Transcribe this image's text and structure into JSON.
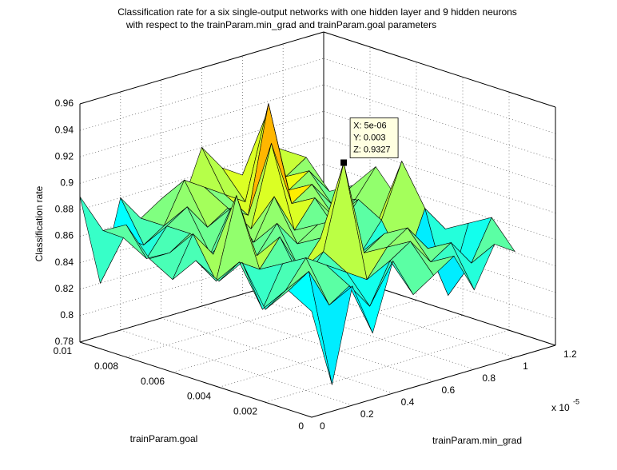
{
  "chart_data": {
    "type": "surface3d",
    "title": [
      "Classification rate for a six single-output networks with one hidden layer and 9 hidden neurons",
      "with respect to the trainParam.min_grad and trainParam.goal parameters"
    ],
    "xlabel": "trainParam.min_grad",
    "ylabel": "trainParam.goal",
    "zlabel": "Classification rate",
    "x_multiplier": {
      "base": "x 10",
      "exponent": "-5"
    },
    "x": [
      0,
      0.1,
      0.2,
      0.3,
      0.4,
      0.5,
      0.6,
      0.7,
      0.8,
      0.9,
      1.0
    ],
    "y": [
      0,
      0.001,
      0.002,
      0.003,
      0.004,
      0.005,
      0.006,
      0.007,
      0.008,
      0.009,
      0.01
    ],
    "z": [
      [
        0.86,
        0.8,
        0.87,
        0.83,
        0.88,
        0.85,
        0.86,
        0.87,
        0.84,
        0.87,
        0.86
      ],
      [
        0.87,
        0.88,
        0.85,
        0.86,
        0.84,
        0.87,
        0.88,
        0.86,
        0.87,
        0.85,
        0.88
      ],
      [
        0.85,
        0.86,
        0.88,
        0.87,
        0.86,
        0.85,
        0.87,
        0.88,
        0.86,
        0.82,
        0.87
      ],
      [
        0.88,
        0.84,
        0.87,
        0.85,
        0.87,
        0.9327,
        0.86,
        0.87,
        0.84,
        0.88,
        0.86
      ],
      [
        0.86,
        0.87,
        0.86,
        0.88,
        0.85,
        0.87,
        0.88,
        0.85,
        0.87,
        0.91,
        0.86
      ],
      [
        0.87,
        0.85,
        0.91,
        0.86,
        0.88,
        0.86,
        0.87,
        0.86,
        0.88,
        0.86,
        0.87
      ],
      [
        0.85,
        0.88,
        0.86,
        0.87,
        0.86,
        0.89,
        0.86,
        0.88,
        0.86,
        0.87,
        0.89
      ],
      [
        0.86,
        0.86,
        0.87,
        0.85,
        0.88,
        0.86,
        0.92,
        0.87,
        0.88,
        0.86,
        0.87
      ],
      [
        0.88,
        0.85,
        0.87,
        0.88,
        0.86,
        0.87,
        0.86,
        0.94,
        0.87,
        0.88,
        0.86
      ],
      [
        0.87,
        0.86,
        0.85,
        0.86,
        0.89,
        0.88,
        0.87,
        0.86,
        0.92,
        0.87,
        0.88
      ],
      [
        0.89,
        0.82,
        0.88,
        0.86,
        0.87,
        0.86,
        0.9,
        0.88,
        0.87,
        0.89,
        0.88
      ]
    ],
    "colormap": "jet",
    "xlim": [
      0,
      1.2
    ],
    "xticks": [
      0,
      0.2,
      0.4,
      0.6,
      0.8,
      1,
      1.2
    ],
    "ylim": [
      0,
      0.01
    ],
    "yticks": [
      0,
      0.002,
      0.004,
      0.006,
      0.008,
      0.01
    ],
    "zlim": [
      0.78,
      0.96
    ],
    "zticks": [
      0.78,
      0.8,
      0.82,
      0.84,
      0.86,
      0.88,
      0.9,
      0.92,
      0.94,
      0.96
    ],
    "grid": true,
    "datatip": {
      "x": 0.5,
      "y": 0.003,
      "z": 0.9327,
      "lines": [
        "X: 5e-06",
        "Y: 0.003",
        "Z: 0.9327"
      ]
    }
  }
}
